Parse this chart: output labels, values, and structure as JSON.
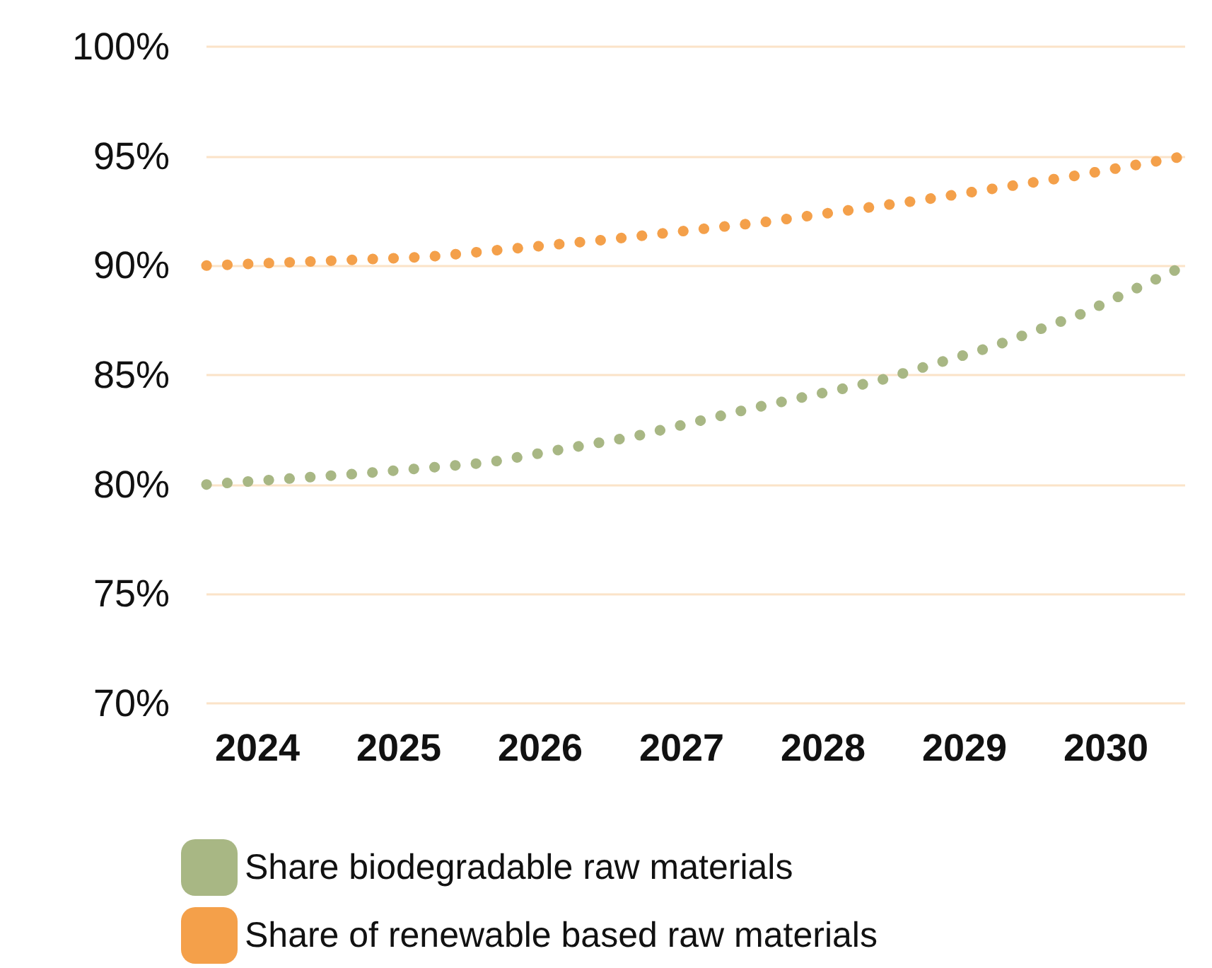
{
  "chart_data": {
    "type": "line",
    "line_style": "dotted",
    "marker": "none",
    "grid": "y",
    "legend": "bottom",
    "xlim": [
      2023.64,
      2030.56
    ],
    "xticks": [
      2024,
      2025,
      2026,
      2027,
      2028,
      2029,
      2030
    ],
    "ylim": [
      70,
      100
    ],
    "yticks": [
      {
        "value": 70,
        "label": "70%"
      },
      {
        "value": 75,
        "label": "75%"
      },
      {
        "value": 80,
        "label": "80%"
      },
      {
        "value": 85,
        "label": "85%"
      },
      {
        "value": 90,
        "label": "90%"
      },
      {
        "value": 95,
        "label": "95%"
      },
      {
        "value": 100,
        "label": "100%"
      }
    ],
    "series": [
      {
        "name": "Share biodegradable raw materials",
        "color": "#a8b784",
        "x": [
          2023.64,
          2024.73,
          2025.63,
          2026.67,
          2027.51,
          2028.37,
          2029.2,
          2029.83,
          2030.56
        ],
        "values": [
          80.0,
          80.5,
          81.0,
          82.2,
          83.5,
          84.7,
          86.3,
          87.8,
          90.0
        ]
      },
      {
        "name": "Share of renewable based raw materials",
        "color": "#f4a04a",
        "x": [
          2023.64,
          2025.21,
          2026.49,
          2027.6,
          2028.7,
          2029.78,
          2030.56
        ],
        "values": [
          90.0,
          90.4,
          91.2,
          92.0,
          93.0,
          94.1,
          95.0
        ]
      }
    ]
  }
}
